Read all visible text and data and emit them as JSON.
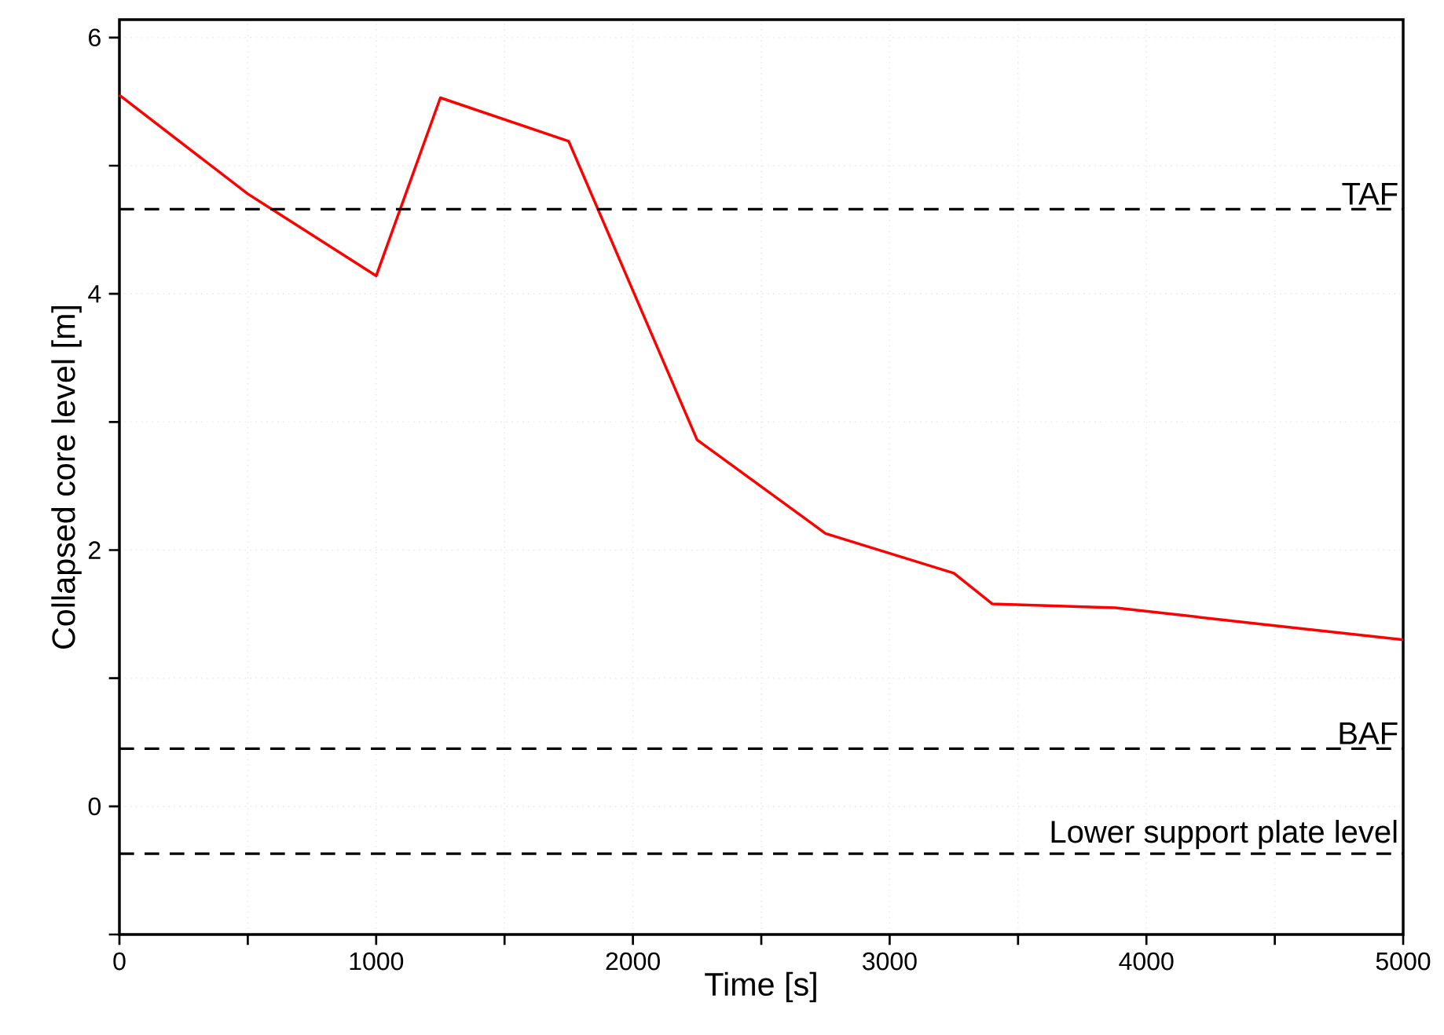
{
  "chart_data": {
    "type": "line",
    "xlabel": "Time [s]",
    "ylabel": "Collapsed core level   [m]",
    "x": [
      0,
      500,
      1000,
      1250,
      1750,
      2250,
      2750,
      3250,
      3400,
      3880,
      4500,
      5000
    ],
    "series": [
      {
        "color": "#ff0000",
        "values": [
          5.55,
          4.78,
          4.14,
          5.53,
          5.19,
          2.86,
          2.13,
          1.82,
          1.58,
          1.55,
          1.41,
          1.3
        ]
      }
    ],
    "xlim": [
      0,
      5000
    ],
    "ylim": [
      -1,
      6.14
    ],
    "xticks": [
      0,
      {
        "value": 500,
        "label": null
      },
      1000,
      {
        "value": 1500,
        "label": null
      },
      2000,
      {
        "value": 2500,
        "label": null
      },
      3000,
      {
        "value": 3500,
        "label": null
      },
      4000,
      {
        "value": 4500,
        "label": null
      },
      5000
    ],
    "yticks": [
      {
        "value": -1,
        "label": null
      },
      0,
      {
        "value": 1,
        "label": null
      },
      2,
      {
        "value": 3,
        "label": null
      },
      4,
      {
        "value": 5,
        "label": null
      },
      6
    ],
    "ref_lines": [
      {
        "axis": "y",
        "value": 4.66,
        "label": "TAF",
        "color": "#000000",
        "line_style": "dashed"
      },
      {
        "axis": "y",
        "value": 0.45,
        "label": "BAF",
        "color": "#000000",
        "line_style": "dashed"
      },
      {
        "axis": "y",
        "value": -0.37,
        "label": "Lower support plate level",
        "color": "#000000",
        "line_style": "dashed"
      }
    ],
    "grid": true,
    "marker": "none",
    "line_style": "solid"
  }
}
